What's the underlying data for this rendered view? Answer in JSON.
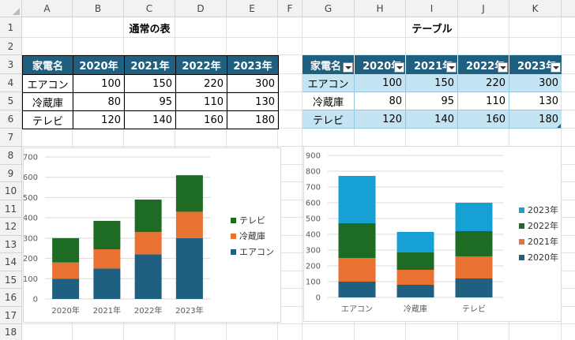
{
  "columns": [
    "A",
    "B",
    "C",
    "D",
    "E",
    "F",
    "G",
    "H",
    "I",
    "J",
    "K"
  ],
  "rows": [
    "1",
    "2",
    "3",
    "4",
    "5",
    "6",
    "7",
    "8",
    "9",
    "10",
    "11",
    "12",
    "13",
    "14",
    "15",
    "16",
    "17",
    "18"
  ],
  "normal_table": {
    "title": "通常の表",
    "header": [
      "家電名",
      "2020年",
      "2021年",
      "2022年",
      "2023年"
    ],
    "rows": [
      {
        "name": "エアコン",
        "values": [
          "100",
          "150",
          "220",
          "300"
        ]
      },
      {
        "name": "冷蔵庫",
        "values": [
          "80",
          "95",
          "110",
          "130"
        ]
      },
      {
        "name": "テレビ",
        "values": [
          "120",
          "140",
          "160",
          "180"
        ]
      }
    ]
  },
  "excel_table": {
    "title": "テーブル",
    "header": [
      "家電名",
      "2020年",
      "2021年",
      "2022年",
      "2023年"
    ],
    "rows": [
      {
        "name": "エアコン",
        "values": [
          "100",
          "150",
          "220",
          "300"
        ]
      },
      {
        "name": "冷蔵庫",
        "values": [
          "80",
          "95",
          "110",
          "130"
        ]
      },
      {
        "name": "テレビ",
        "values": [
          "120",
          "140",
          "160",
          "180"
        ]
      }
    ]
  },
  "colors": {
    "header_fill": "#1f5f7f",
    "band_fill": "#c5e4f3",
    "series_dark_blue": "#1f5f7f",
    "series_orange": "#e97132",
    "series_green": "#1e6b24",
    "series_light_blue": "#16a0d4"
  },
  "chart_data": [
    {
      "type": "bar",
      "stacked": true,
      "categories": [
        "2020年",
        "2021年",
        "2022年",
        "2023年"
      ],
      "series": [
        {
          "name": "エアコン",
          "values": [
            100,
            150,
            220,
            300
          ],
          "color": "#1f5f7f"
        },
        {
          "name": "冷蔵庫",
          "values": [
            80,
            95,
            110,
            130
          ],
          "color": "#e97132"
        },
        {
          "name": "テレビ",
          "values": [
            120,
            140,
            160,
            180
          ],
          "color": "#1e6b24"
        }
      ],
      "ylim": [
        0,
        700
      ],
      "yticks": [
        "0",
        "100",
        "200",
        "300",
        "400",
        "500",
        "600",
        "700"
      ],
      "grid": true,
      "legend": "right"
    },
    {
      "type": "bar",
      "stacked": true,
      "categories": [
        "エアコン",
        "冷蔵庫",
        "テレビ"
      ],
      "series": [
        {
          "name": "2020年",
          "values": [
            100,
            80,
            120
          ],
          "color": "#1f5f7f"
        },
        {
          "name": "2021年",
          "values": [
            150,
            95,
            140
          ],
          "color": "#e97132"
        },
        {
          "name": "2022年",
          "values": [
            220,
            110,
            160
          ],
          "color": "#1e6b24"
        },
        {
          "name": "2023年",
          "values": [
            300,
            130,
            180
          ],
          "color": "#16a0d4"
        }
      ],
      "ylim": [
        0,
        900
      ],
      "yticks": [
        "0",
        "100",
        "200",
        "300",
        "400",
        "500",
        "600",
        "700",
        "800",
        "900"
      ],
      "grid": true,
      "legend": "right"
    }
  ]
}
